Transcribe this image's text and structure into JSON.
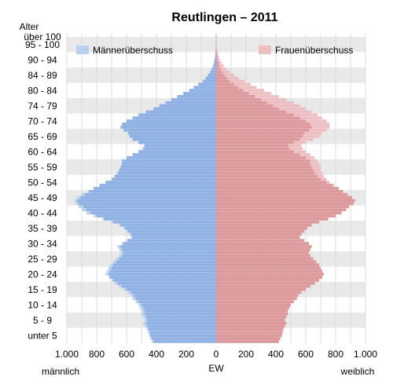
{
  "chart_data": {
    "type": "bar",
    "orientation": "horizontal",
    "title": "Reutlingen – 2011",
    "ylabel": "Alter",
    "xlabel": "EW",
    "left_side_label": "männlich",
    "right_side_label": "weiblich",
    "x_tick_labels": [
      "1.000",
      "800",
      "600",
      "400",
      "200",
      "0",
      "200",
      "400",
      "600",
      "800",
      "1.000"
    ],
    "xlim": [
      -1000,
      1000
    ],
    "age_group_labels": [
      "unter 5",
      "5 - 9",
      "10 - 14",
      "15 - 19",
      "20 - 24",
      "25 - 29",
      "30 - 34",
      "35 - 39",
      "40 - 44",
      "45 - 49",
      "50 - 54",
      "55 - 59",
      "60 - 64",
      "65 - 69",
      "70 - 74",
      "74 - 79",
      "80 - 84",
      "84 - 89",
      "90 - 94",
      "95 - 100",
      "über 100"
    ],
    "age_group_label_ages": [
      2,
      7,
      12,
      17,
      22,
      27,
      32,
      37,
      42,
      47,
      52,
      57,
      62,
      67,
      72,
      77,
      82,
      87,
      92,
      97,
      101
    ],
    "ages": [
      0,
      1,
      2,
      3,
      4,
      5,
      6,
      7,
      8,
      9,
      10,
      11,
      12,
      13,
      14,
      15,
      16,
      17,
      18,
      19,
      20,
      21,
      22,
      23,
      24,
      25,
      26,
      27,
      28,
      29,
      30,
      31,
      32,
      33,
      34,
      35,
      36,
      37,
      38,
      39,
      40,
      41,
      42,
      43,
      44,
      45,
      46,
      47,
      48,
      49,
      50,
      51,
      52,
      53,
      54,
      55,
      56,
      57,
      58,
      59,
      60,
      61,
      62,
      63,
      64,
      65,
      66,
      67,
      68,
      69,
      70,
      71,
      72,
      73,
      74,
      75,
      76,
      77,
      78,
      79,
      80,
      81,
      82,
      83,
      84,
      85,
      86,
      87,
      88,
      89,
      90,
      91,
      92,
      93,
      94,
      95,
      96,
      97,
      98,
      99,
      100
    ],
    "series": [
      {
        "name": "männlich",
        "values": [
          430,
          440,
          450,
          455,
          465,
          480,
          490,
          480,
          490,
          500,
          500,
          510,
          520,
          540,
          560,
          570,
          590,
          620,
          650,
          680,
          700,
          720,
          740,
          730,
          720,
          710,
          690,
          670,
          650,
          640,
          650,
          660,
          630,
          600,
          570,
          580,
          600,
          620,
          650,
          700,
          760,
          820,
          870,
          900,
          920,
          940,
          950,
          930,
          900,
          860,
          820,
          780,
          740,
          700,
          680,
          660,
          650,
          640,
          630,
          630,
          600,
          560,
          520,
          490,
          480,
          520,
          560,
          580,
          590,
          620,
          640,
          630,
          600,
          560,
          520,
          470,
          420,
          380,
          340,
          300,
          260,
          220,
          180,
          150,
          120,
          90,
          70,
          55,
          40,
          30,
          20,
          15,
          10,
          7,
          5,
          3,
          2,
          1,
          1,
          0,
          0
        ]
      },
      {
        "name": "weiblich",
        "values": [
          420,
          430,
          440,
          445,
          450,
          460,
          470,
          460,
          470,
          480,
          480,
          490,
          500,
          520,
          540,
          550,
          570,
          600,
          630,
          660,
          690,
          710,
          720,
          710,
          700,
          690,
          670,
          650,
          630,
          620,
          630,
          640,
          620,
          590,
          560,
          570,
          590,
          610,
          640,
          690,
          750,
          800,
          840,
          870,
          890,
          920,
          930,
          910,
          880,
          850,
          820,
          790,
          760,
          740,
          720,
          710,
          700,
          700,
          690,
          680,
          660,
          630,
          600,
          580,
          570,
          600,
          650,
          690,
          710,
          740,
          760,
          760,
          740,
          710,
          680,
          640,
          600,
          560,
          520,
          470,
          420,
          370,
          320,
          270,
          230,
          190,
          150,
          120,
          90,
          70,
          50,
          35,
          25,
          18,
          12,
          8,
          5,
          3,
          2,
          1,
          1
        ]
      }
    ],
    "legend": [
      {
        "label": "Männerüberschuss",
        "color": "#b9d1ef",
        "position": "top-left"
      },
      {
        "label": "Frauenüberschuss",
        "color": "#edbec2",
        "position": "top-right"
      }
    ],
    "colors": {
      "male": "#8fb1e3",
      "female": "#dd9a9c",
      "male_surplus": "#b9d1ef",
      "female_surplus": "#edbec2",
      "band": "#e9e9e9"
    },
    "grid": true
  }
}
